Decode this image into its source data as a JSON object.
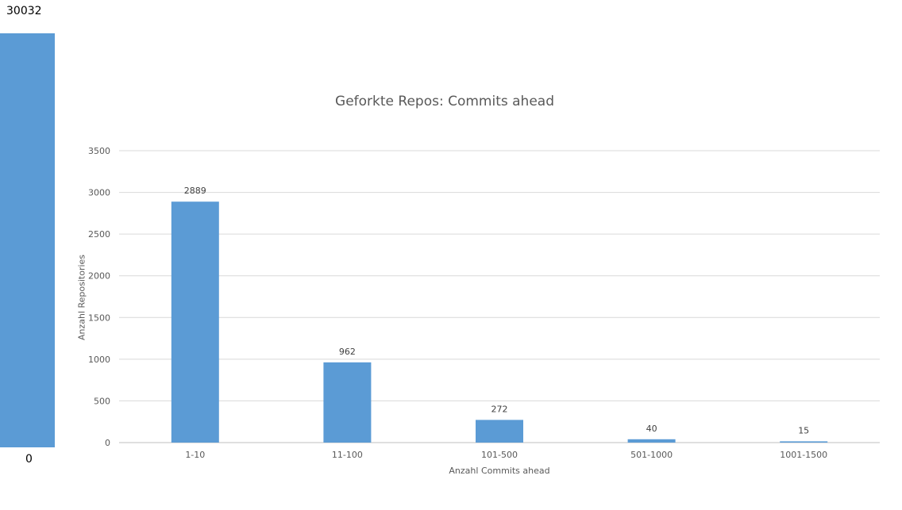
{
  "side_indicator": {
    "max_label": "30032",
    "min_label": "0",
    "color": "#5b9bd5",
    "level": 1.0
  },
  "chart_data": {
    "type": "bar",
    "title": "Geforkte Repos: Commits ahead",
    "xlabel": "Anzahl Commits ahead",
    "ylabel": "Anzahl Repositories",
    "categories": [
      "1-10",
      "11-100",
      "101-500",
      "501-1000",
      "1001-1500"
    ],
    "values": [
      2889,
      962,
      272,
      40,
      15
    ],
    "data_labels": [
      "2889",
      "962",
      "272",
      "40",
      "15"
    ],
    "ylim": [
      0,
      3500
    ],
    "yticks": [
      0,
      500,
      1000,
      1500,
      2000,
      2500,
      3000,
      3500
    ],
    "grid": true,
    "legend": "none",
    "bar_color": "#5b9bd5",
    "grid_color": "#d9d9d9"
  }
}
